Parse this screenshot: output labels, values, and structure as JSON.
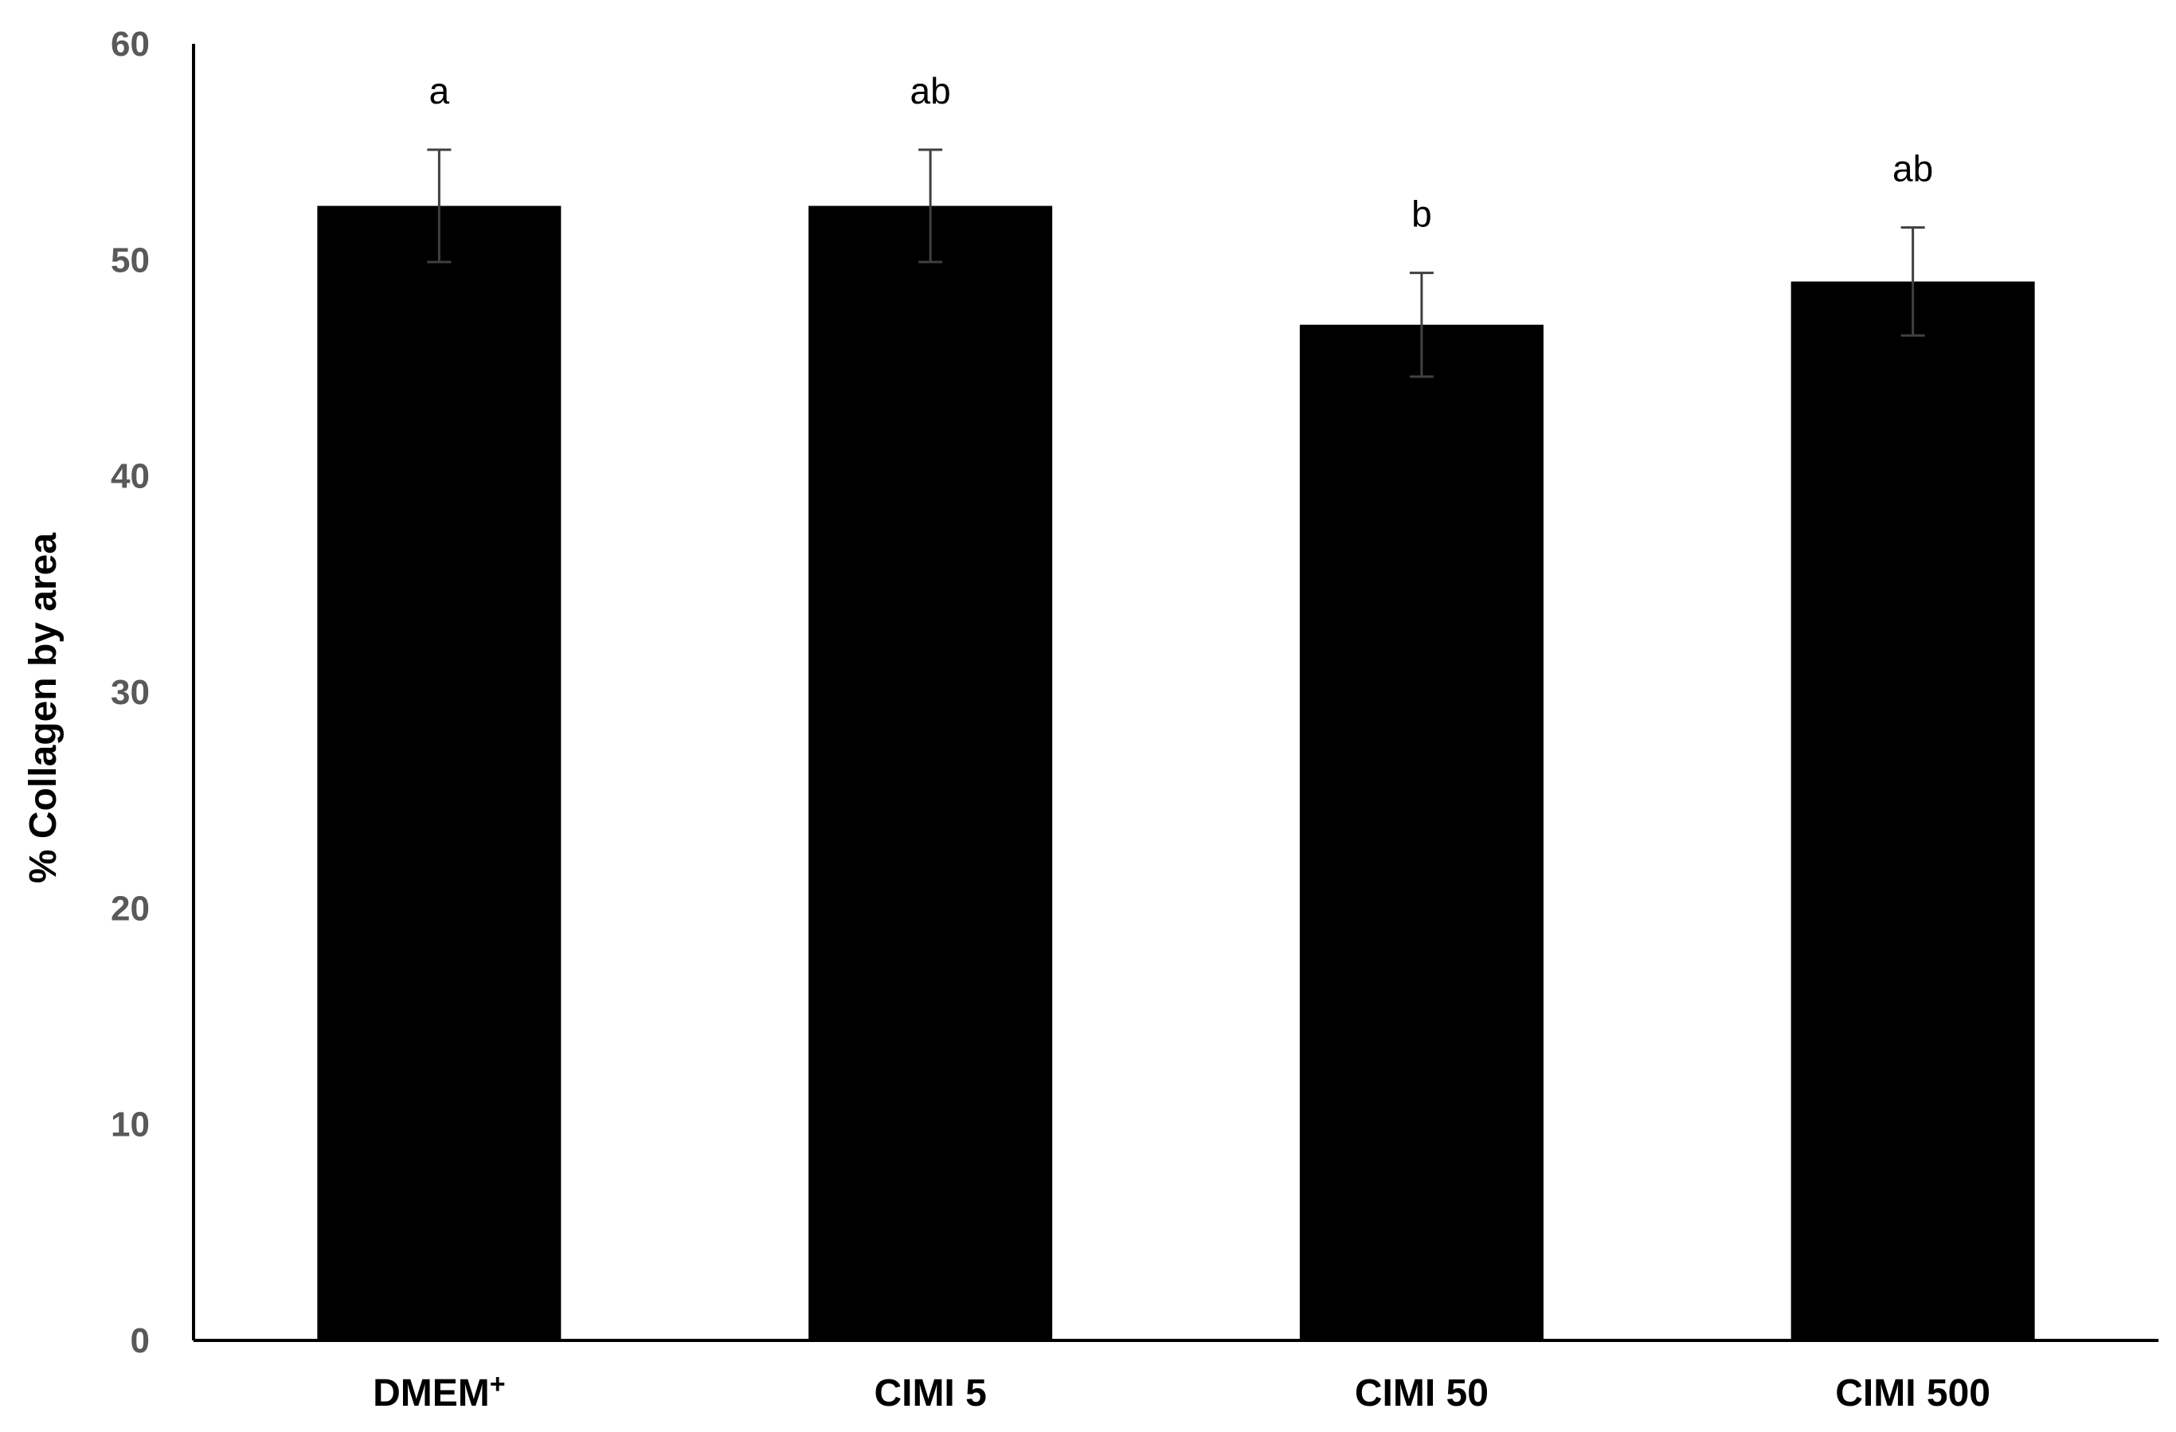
{
  "chart_data": {
    "type": "bar",
    "title": "",
    "xlabel": "",
    "ylabel": "% Collagen by area",
    "categories": [
      "DMEM",
      "CIMI 5",
      "CIMI 50",
      "CIMI 500"
    ],
    "category_superscripts": [
      "+",
      "",
      "",
      ""
    ],
    "values": [
      52.5,
      52.5,
      47.0,
      49.0
    ],
    "errors": [
      2.6,
      2.6,
      2.4,
      2.5
    ],
    "significance_letters": [
      "a",
      "ab",
      "b",
      "ab"
    ],
    "ylim": [
      0,
      60
    ],
    "yticks": [
      0,
      10,
      20,
      30,
      40,
      50,
      60
    ],
    "grid": false,
    "legend": "none",
    "bar_color": "#000000"
  }
}
